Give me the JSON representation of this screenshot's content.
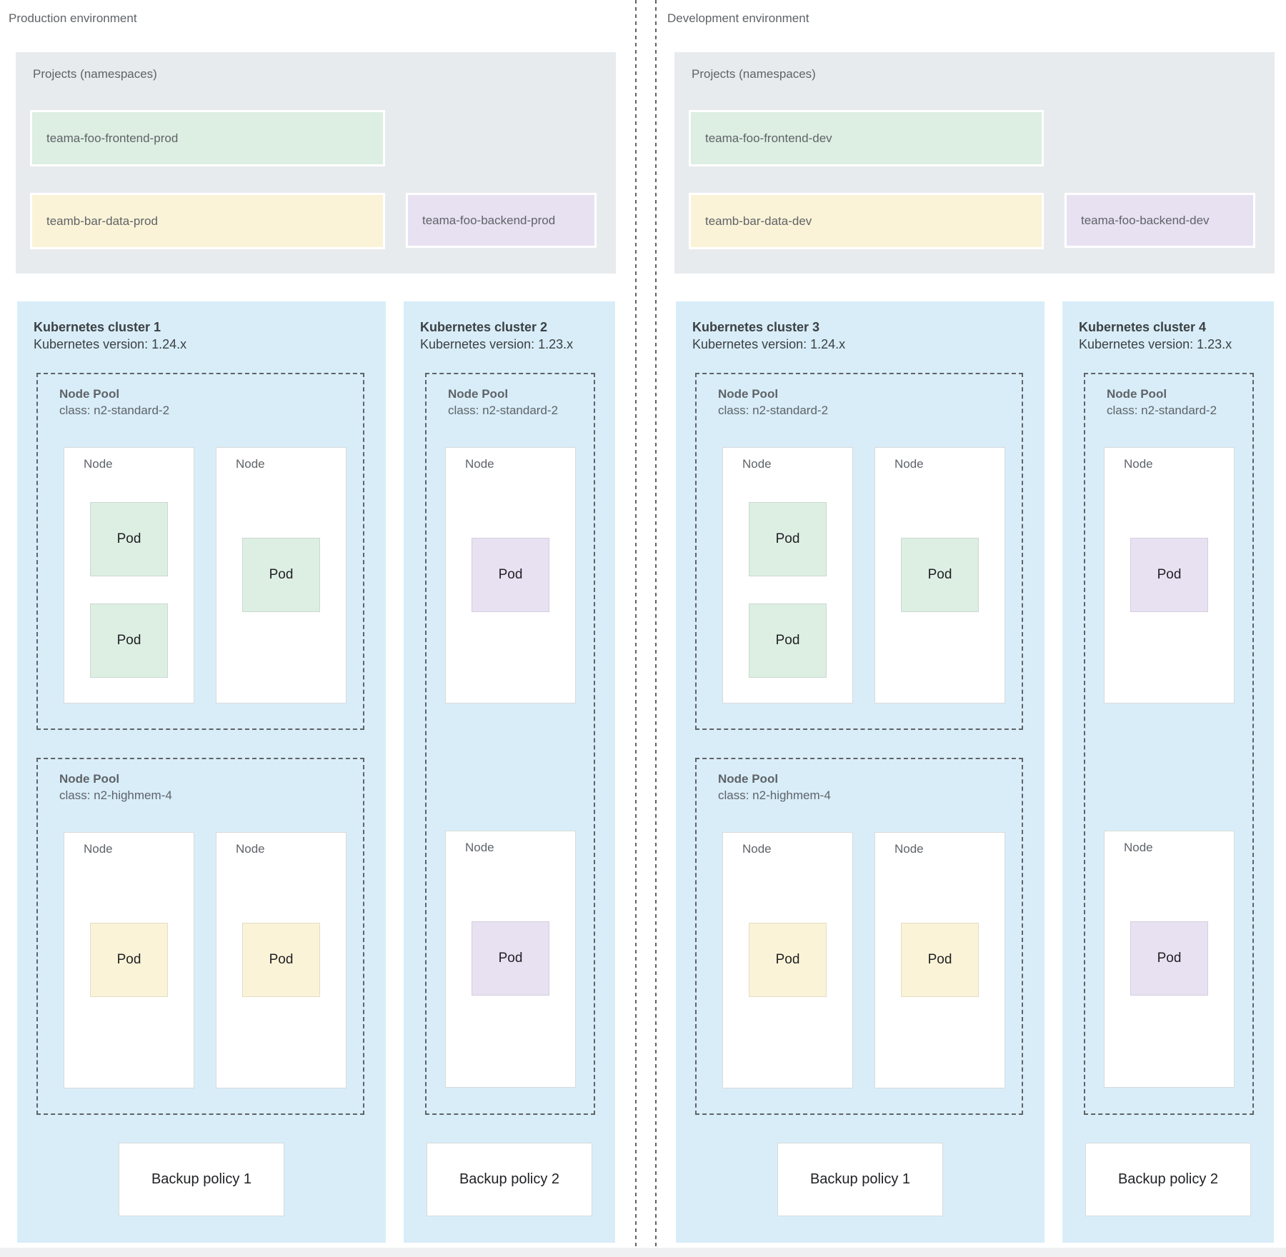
{
  "diagram": {
    "title_hint": "GKE multi-environment architecture",
    "colors": {
      "cluster_bg": "#d8edf8",
      "projects_bg": "#e8ebee",
      "frontend_green": "#ddeee3",
      "data_yellow": "#fbf3d7",
      "backend_purple": "#e8e1f2",
      "dashed_border": "#5f6368",
      "text_gray": "#5f6368",
      "text_dark": "#3c4043"
    }
  },
  "environments": [
    {
      "label": "Production environment",
      "projects": {
        "title": "Projects (namespaces)",
        "items": [
          {
            "name": "teama-foo-frontend-prod",
            "color": "green"
          },
          {
            "name": "teamb-bar-data-prod",
            "color": "yellow"
          },
          {
            "name": "teama-foo-backend-prod",
            "color": "purple"
          }
        ]
      },
      "clusters": [
        {
          "name": "Kubernetes cluster 1",
          "version": "Kubernetes version: 1.24.x",
          "pools": [
            {
              "title": "Node Pool",
              "class": "class: n2-standard-2",
              "nodes": [
                {
                  "label": "Node",
                  "pods": [
                    {
                      "label": "Pod",
                      "color": "green",
                      "position": "top"
                    },
                    {
                      "label": "Pod",
                      "color": "green",
                      "position": "bottom"
                    }
                  ]
                },
                {
                  "label": "Node",
                  "pods": [
                    {
                      "label": "Pod",
                      "color": "green",
                      "position": "middle"
                    }
                  ]
                }
              ]
            },
            {
              "title": "Node Pool",
              "class": "class: n2-highmem-4",
              "nodes": [
                {
                  "label": "Node",
                  "pods": [
                    {
                      "label": "Pod",
                      "color": "yellow",
                      "position": "middle"
                    }
                  ]
                },
                {
                  "label": "Node",
                  "pods": [
                    {
                      "label": "Pod",
                      "color": "yellow",
                      "position": "middle"
                    }
                  ]
                }
              ]
            }
          ],
          "backup_policy": "Backup policy 1"
        },
        {
          "name": "Kubernetes cluster 2",
          "version": "Kubernetes version: 1.23.x",
          "pools": [
            {
              "title": "Node Pool",
              "class": "class: n2-standard-2",
              "nodes": [
                {
                  "label": "Node",
                  "pods": [
                    {
                      "label": "Pod",
                      "color": "purple",
                      "position": "middle"
                    }
                  ]
                },
                {
                  "label": "Node",
                  "pods": [
                    {
                      "label": "Pod",
                      "color": "purple",
                      "position": "middle"
                    }
                  ]
                }
              ]
            }
          ],
          "backup_policy": "Backup policy 2"
        }
      ]
    },
    {
      "label": "Development environment",
      "projects": {
        "title": "Projects (namespaces)",
        "items": [
          {
            "name": "teama-foo-frontend-dev",
            "color": "green"
          },
          {
            "name": "teamb-bar-data-dev",
            "color": "yellow"
          },
          {
            "name": "teama-foo-backend-dev",
            "color": "purple"
          }
        ]
      },
      "clusters": [
        {
          "name": "Kubernetes cluster 3",
          "version": "Kubernetes version: 1.24.x",
          "pools": [
            {
              "title": "Node Pool",
              "class": "class: n2-standard-2",
              "nodes": [
                {
                  "label": "Node",
                  "pods": [
                    {
                      "label": "Pod",
                      "color": "green",
                      "position": "top"
                    },
                    {
                      "label": "Pod",
                      "color": "green",
                      "position": "bottom"
                    }
                  ]
                },
                {
                  "label": "Node",
                  "pods": [
                    {
                      "label": "Pod",
                      "color": "green",
                      "position": "middle"
                    }
                  ]
                }
              ]
            },
            {
              "title": "Node Pool",
              "class": "class: n2-highmem-4",
              "nodes": [
                {
                  "label": "Node",
                  "pods": [
                    {
                      "label": "Pod",
                      "color": "yellow",
                      "position": "middle"
                    }
                  ]
                },
                {
                  "label": "Node",
                  "pods": [
                    {
                      "label": "Pod",
                      "color": "yellow",
                      "position": "middle"
                    }
                  ]
                }
              ]
            }
          ],
          "backup_policy": "Backup policy 1"
        },
        {
          "name": "Kubernetes cluster 4",
          "version": "Kubernetes version: 1.23.x",
          "pools": [
            {
              "title": "Node Pool",
              "class": "class: n2-standard-2",
              "nodes": [
                {
                  "label": "Node",
                  "pods": [
                    {
                      "label": "Pod",
                      "color": "purple",
                      "position": "middle"
                    }
                  ]
                },
                {
                  "label": "Node",
                  "pods": [
                    {
                      "label": "Pod",
                      "color": "purple",
                      "position": "middle"
                    }
                  ]
                }
              ]
            }
          ],
          "backup_policy": "Backup policy 2"
        }
      ]
    }
  ]
}
